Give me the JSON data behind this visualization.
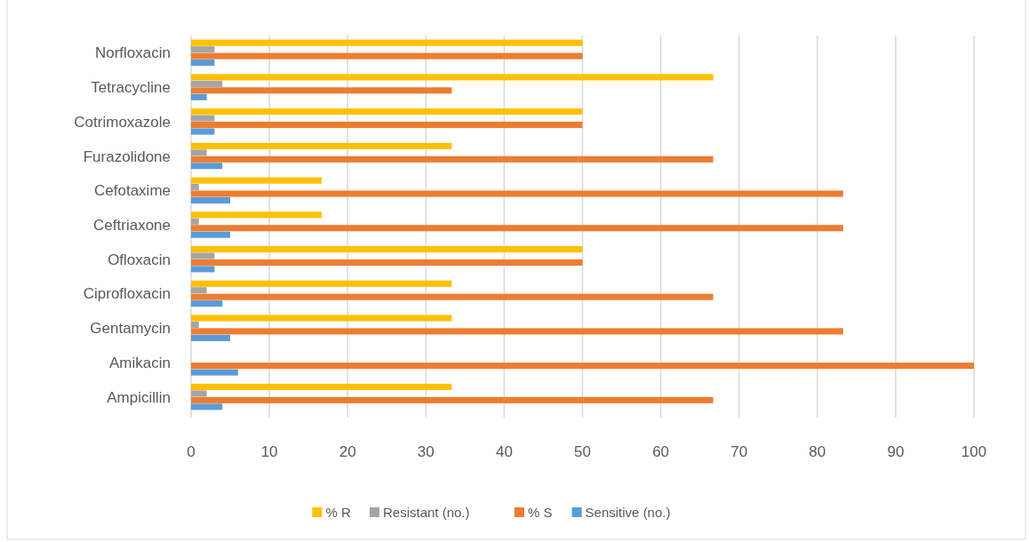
{
  "chart_data": {
    "type": "bar",
    "orientation": "horizontal",
    "categories": [
      "Norfloxacin",
      "Tetracycline",
      "Cotrimoxazole",
      "Furazolidone",
      "Cefotaxime",
      "Ceftriaxone",
      "Ofloxacin",
      "Ciprofloxacin",
      "Gentamycin ",
      "Amikacin",
      "Ampicillin"
    ],
    "series": [
      {
        "name": "% R",
        "color": "#ffc000",
        "values": [
          50,
          66.7,
          50,
          33.3,
          16.7,
          16.7,
          50,
          33.3,
          33.3,
          0,
          33.3
        ]
      },
      {
        "name": "Resistant (no.)",
        "color": "#a5a5a5",
        "values": [
          3,
          4,
          3,
          2,
          1,
          1,
          3,
          2,
          1,
          0,
          2
        ]
      },
      {
        "name": "% S",
        "color": "#ed7d31",
        "values": [
          50,
          33.3,
          50,
          66.7,
          83.3,
          83.3,
          50,
          66.7,
          83.3,
          100,
          66.7
        ]
      },
      {
        "name": "Sensitive (no.)",
        "color": "#5b9bd5",
        "values": [
          3,
          2,
          3,
          4,
          5,
          5,
          3,
          4,
          5,
          6,
          4
        ]
      }
    ],
    "xlim": [
      0,
      100
    ],
    "xticks": [
      0,
      10,
      20,
      30,
      40,
      50,
      60,
      70,
      80,
      90,
      100
    ],
    "grid": "x",
    "legend": "bottom"
  }
}
